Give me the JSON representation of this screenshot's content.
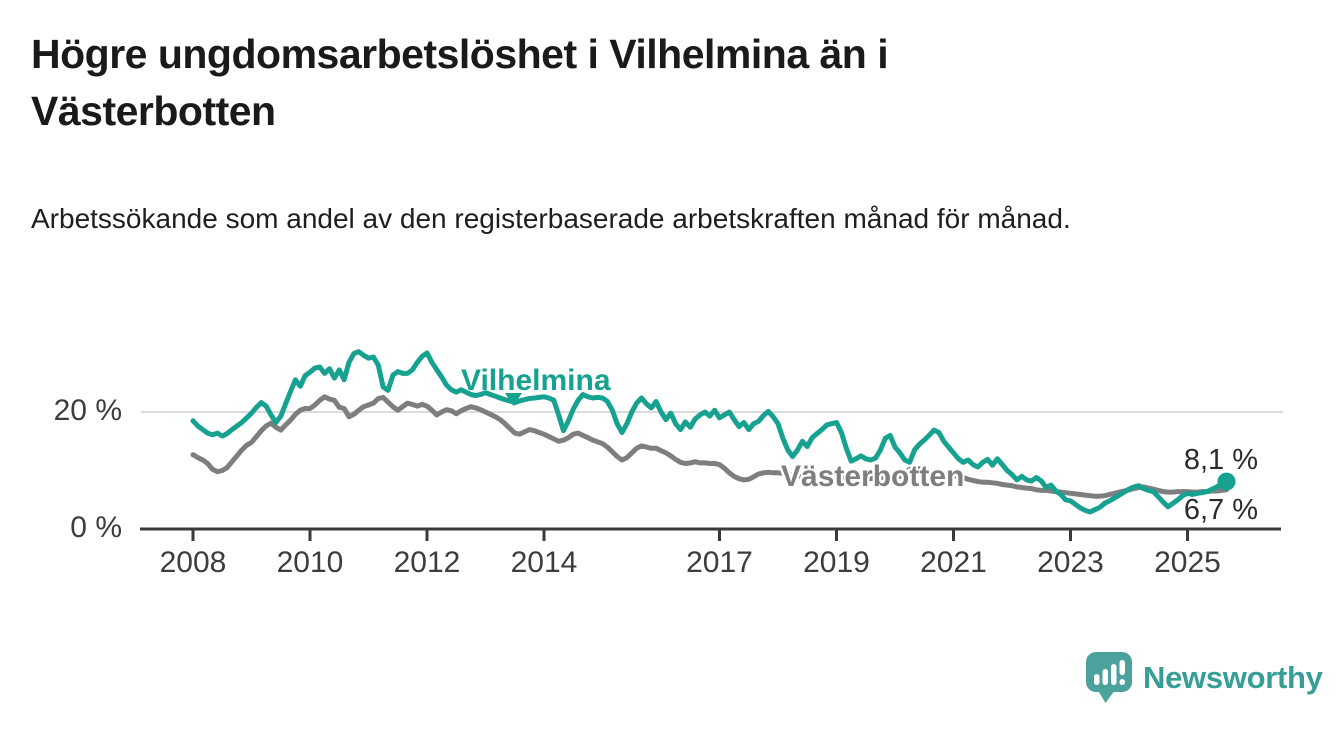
{
  "header": {
    "title": "Högre ungdomsarbetslöshet i Vilhelmina än i Västerbotten",
    "subtitle": "Arbetssökande som andel av den registerbaserade arbetskraften månad för månad."
  },
  "footer": {
    "brand": "Newsworthy",
    "logo_icon": "newsworthy-speech-bubble-bar-chart-icon",
    "brand_text_color": "#379e96",
    "brand_icon_color": "#4ba19c"
  },
  "chart_data": {
    "type": "line",
    "title": "Högre ungdomsarbetslöshet i Vilhelmina än i Västerbotten",
    "subtitle": "Arbetssökande som andel av den registerbaserade arbetskraften månad för månad.",
    "x_frequency": "monthly",
    "x_start": "2008-01",
    "x_end": "2025-09",
    "x_axis": {
      "ticks": [
        {
          "label": "2008",
          "year": 2008
        },
        {
          "label": "2010",
          "year": 2010
        },
        {
          "label": "2012",
          "year": 2012
        },
        {
          "label": "2014",
          "year": 2014
        },
        {
          "label": "2017",
          "year": 2017
        },
        {
          "label": "2019",
          "year": 2019
        },
        {
          "label": "2021",
          "year": 2021
        },
        {
          "label": "2023",
          "year": 2023
        },
        {
          "label": "2025",
          "year": 2025
        }
      ]
    },
    "y_axis": {
      "unit": "%",
      "range": [
        0,
        32
      ],
      "gridlines": [
        20
      ],
      "ticks": [
        {
          "label": "0 %",
          "value": 0
        },
        {
          "label": "20 %",
          "value": 20
        }
      ]
    },
    "legend_position": "inline-labels",
    "series": [
      {
        "name": "Vilhelmina",
        "color": "#16a191",
        "end_label": "8,1 %",
        "end_value": 8.1,
        "pointer": {
          "year": 2013.45,
          "value": 21.0
        },
        "values": [
          18.5,
          17.6,
          17.0,
          16.4,
          16.1,
          16.4,
          15.9,
          16.3,
          17.0,
          17.6,
          18.2,
          19.0,
          19.8,
          20.8,
          21.6,
          21.0,
          19.5,
          18.2,
          19.3,
          21.4,
          23.5,
          25.5,
          24.4,
          26.2,
          26.8,
          27.5,
          27.7,
          26.6,
          27.4,
          25.8,
          27.2,
          25.5,
          28.5,
          30.0,
          30.3,
          29.7,
          29.2,
          29.4,
          28.0,
          24.3,
          23.7,
          26.3,
          26.9,
          26.6,
          26.6,
          27.2,
          28.5,
          29.5,
          30.1,
          28.5,
          27.2,
          26.0,
          24.6,
          23.8,
          23.4,
          23.8,
          23.4,
          23.0,
          22.8,
          23.0,
          23.3,
          23.0,
          22.7,
          22.4,
          22.1,
          21.9,
          21.6,
          21.9,
          22.1,
          22.3,
          22.4,
          22.5,
          22.6,
          22.4,
          22.0,
          19.5,
          16.8,
          18.5,
          20.5,
          22.0,
          23.0,
          22.6,
          22.4,
          22.5,
          22.4,
          21.8,
          20.3,
          18.0,
          16.5,
          18.0,
          20.0,
          21.5,
          22.4,
          21.4,
          20.7,
          21.8,
          20.0,
          18.7,
          19.8,
          18.0,
          17.0,
          18.3,
          17.4,
          18.8,
          19.5,
          20.0,
          19.3,
          20.3,
          19.0,
          19.5,
          20.0,
          18.7,
          17.5,
          18.2,
          17.0,
          18.0,
          18.4,
          19.4,
          20.1,
          19.2,
          18.0,
          15.5,
          13.5,
          12.4,
          13.5,
          15.0,
          14.1,
          15.6,
          16.3,
          17.0,
          17.8,
          18.0,
          18.2,
          16.5,
          13.8,
          11.6,
          12.0,
          12.5,
          12.0,
          11.8,
          12.1,
          13.5,
          15.5,
          16.0,
          14.0,
          13.0,
          11.8,
          11.4,
          13.5,
          14.5,
          15.2,
          16.0,
          16.9,
          16.5,
          15.0,
          14.0,
          13.0,
          12.0,
          11.4,
          11.8,
          11.0,
          10.6,
          11.4,
          11.9,
          10.9,
          12.0,
          11.0,
          10.0,
          9.3,
          8.4,
          9.0,
          8.4,
          8.2,
          8.8,
          8.2,
          7.1,
          7.5,
          6.5,
          5.9,
          5.0,
          4.8,
          4.2,
          3.6,
          3.2,
          2.9,
          3.3,
          3.7,
          4.4,
          4.8,
          5.3,
          5.8,
          6.3,
          6.8,
          7.2,
          7.4,
          6.9,
          6.6,
          6.4,
          5.5,
          4.6,
          3.8,
          4.4,
          5.0,
          5.7,
          6.1,
          5.9,
          6.1,
          6.2,
          6.4,
          6.8,
          7.2,
          7.7,
          8.1
        ]
      },
      {
        "name": "Västerbotten",
        "color": "#7e7e7e",
        "end_label": "6,7 %",
        "end_value": 6.7,
        "values": [
          12.7,
          12.2,
          11.8,
          11.2,
          10.2,
          9.8,
          10.0,
          10.5,
          11.5,
          12.5,
          13.5,
          14.3,
          14.8,
          15.8,
          16.8,
          17.6,
          18.1,
          17.4,
          16.9,
          17.8,
          18.6,
          19.6,
          20.3,
          20.6,
          20.6,
          21.2,
          22.0,
          22.6,
          22.2,
          22.0,
          20.8,
          20.6,
          19.2,
          19.6,
          20.3,
          20.9,
          21.2,
          21.5,
          22.3,
          22.5,
          21.7,
          20.9,
          20.3,
          20.9,
          21.5,
          21.3,
          21.0,
          21.3,
          21.0,
          20.3,
          19.5,
          20.0,
          20.4,
          20.2,
          19.7,
          20.2,
          20.6,
          20.9,
          20.7,
          20.4,
          20.0,
          19.6,
          19.2,
          18.7,
          18.0,
          17.2,
          16.4,
          16.2,
          16.6,
          17.0,
          16.8,
          16.5,
          16.2,
          15.8,
          15.4,
          15.0,
          15.2,
          15.6,
          16.2,
          16.4,
          16.0,
          15.6,
          15.2,
          14.9,
          14.6,
          14.0,
          13.2,
          12.4,
          11.8,
          12.2,
          13.0,
          13.8,
          14.2,
          14.0,
          13.8,
          13.8,
          13.4,
          13.0,
          12.5,
          11.9,
          11.4,
          11.2,
          11.3,
          11.5,
          11.3,
          11.3,
          11.2,
          11.2,
          11.0,
          10.4,
          9.6,
          9.0,
          8.6,
          8.4,
          8.5,
          8.9,
          9.4,
          9.6,
          9.7,
          9.6,
          9.6,
          9.5,
          9.4,
          9.2,
          9.1,
          9.0,
          8.9,
          9.0,
          9.1,
          9.2,
          9.2,
          9.1,
          9.0,
          8.9,
          8.8,
          8.7,
          8.6,
          8.5,
          8.5,
          8.6,
          8.7,
          8.8,
          8.8,
          8.9,
          8.9,
          9.0,
          9.5,
          10.2,
          10.4,
          10.3,
          10.0,
          9.8,
          9.6,
          9.4,
          9.3,
          9.2,
          9.1,
          9.0,
          8.8,
          8.5,
          8.3,
          8.1,
          8.0,
          8.0,
          7.9,
          7.8,
          7.6,
          7.5,
          7.4,
          7.2,
          7.1,
          7.0,
          6.9,
          6.7,
          6.6,
          6.6,
          6.5,
          6.4,
          6.3,
          6.2,
          6.1,
          6.0,
          5.9,
          5.8,
          5.7,
          5.6,
          5.6,
          5.7,
          5.9,
          6.1,
          6.3,
          6.5,
          6.7,
          6.9,
          7.1,
          7.2,
          7.0,
          6.8,
          6.6,
          6.4,
          6.3,
          6.3,
          6.4,
          6.4,
          6.4,
          6.3,
          6.3,
          6.4,
          6.4,
          6.5,
          6.5,
          6.6,
          6.7
        ]
      }
    ]
  }
}
